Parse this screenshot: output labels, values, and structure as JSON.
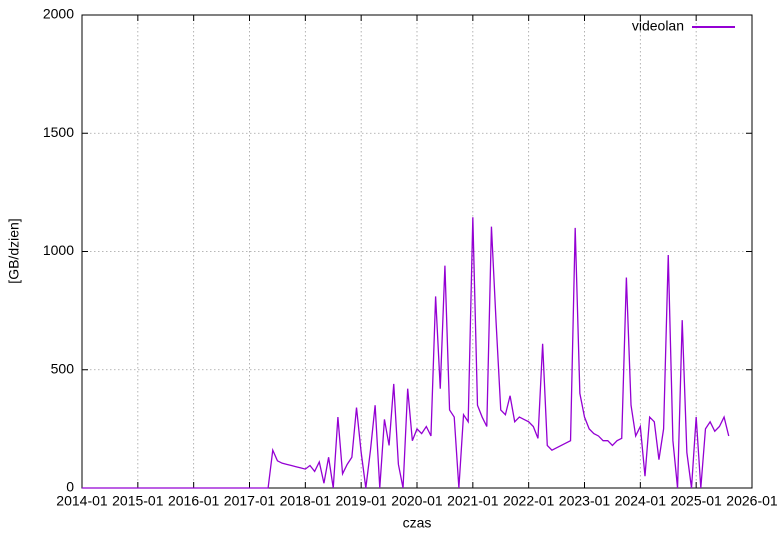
{
  "chart_data": {
    "type": "line",
    "ylabel": "[GB/dzien]",
    "xlabel": "czas",
    "x": [
      "2014-01",
      "2014-02",
      "2014-03",
      "2014-04",
      "2014-05",
      "2014-06",
      "2014-07",
      "2014-08",
      "2014-09",
      "2014-10",
      "2014-11",
      "2014-12",
      "2015-01",
      "2015-02",
      "2015-03",
      "2015-04",
      "2015-05",
      "2015-06",
      "2015-07",
      "2015-08",
      "2015-09",
      "2015-10",
      "2015-11",
      "2015-12",
      "2016-01",
      "2016-02",
      "2016-03",
      "2016-04",
      "2016-05",
      "2016-06",
      "2016-07",
      "2016-08",
      "2016-09",
      "2016-10",
      "2016-11",
      "2016-12",
      "2017-01",
      "2017-02",
      "2017-03",
      "2017-04",
      "2017-05",
      "2017-06",
      "2017-07",
      "2017-08",
      "2017-09",
      "2017-10",
      "2017-11",
      "2017-12",
      "2018-01",
      "2018-02",
      "2018-03",
      "2018-04",
      "2018-05",
      "2018-06",
      "2018-07",
      "2018-08",
      "2018-09",
      "2018-10",
      "2018-11",
      "2018-12",
      "2019-01",
      "2019-02",
      "2019-03",
      "2019-04",
      "2019-05",
      "2019-06",
      "2019-07",
      "2019-08",
      "2019-09",
      "2019-10",
      "2019-11",
      "2019-12",
      "2020-01",
      "2020-02",
      "2020-03",
      "2020-04",
      "2020-05",
      "2020-06",
      "2020-07",
      "2020-08",
      "2020-09",
      "2020-10",
      "2020-11",
      "2020-12",
      "2021-01",
      "2021-02",
      "2021-03",
      "2021-04",
      "2021-05",
      "2021-06",
      "2021-07",
      "2021-08",
      "2021-09",
      "2021-10",
      "2021-11",
      "2021-12",
      "2022-01",
      "2022-02",
      "2022-03",
      "2022-04",
      "2022-05",
      "2022-06",
      "2022-07",
      "2022-08",
      "2022-09",
      "2022-10",
      "2022-11",
      "2022-12",
      "2023-01",
      "2023-02",
      "2023-03",
      "2023-04",
      "2023-05",
      "2023-06",
      "2023-07",
      "2023-08",
      "2023-09",
      "2023-10",
      "2023-11",
      "2023-12",
      "2024-01",
      "2024-02",
      "2024-03",
      "2024-04",
      "2024-05",
      "2024-06",
      "2024-07",
      "2024-08",
      "2024-09",
      "2024-10",
      "2024-11",
      "2024-12",
      "2025-01",
      "2025-02",
      "2025-03",
      "2025-04",
      "2025-05",
      "2025-06",
      "2025-07",
      "2025-08"
    ],
    "series": [
      {
        "name": "videolan",
        "color": "#9400d3",
        "values": [
          0,
          0,
          0,
          0,
          0,
          0,
          0,
          0,
          0,
          0,
          0,
          0,
          0,
          0,
          0,
          0,
          0,
          0,
          0,
          0,
          0,
          0,
          0,
          0,
          0,
          0,
          0,
          0,
          0,
          0,
          0,
          0,
          0,
          0,
          0,
          0,
          0,
          0,
          0,
          0,
          0,
          160,
          115,
          105,
          100,
          95,
          90,
          85,
          80,
          95,
          70,
          110,
          20,
          130,
          0,
          300,
          60,
          100,
          130,
          340,
          150,
          0,
          160,
          350,
          0,
          290,
          180,
          440,
          100,
          0,
          420,
          200,
          250,
          230,
          260,
          220,
          810,
          420,
          940,
          330,
          300,
          0,
          310,
          280,
          1145,
          350,
          300,
          260,
          1105,
          700,
          330,
          310,
          390,
          280,
          300,
          290,
          280,
          260,
          210,
          610,
          180,
          160,
          170,
          180,
          190,
          200,
          1100,
          400,
          300,
          250,
          230,
          220,
          200,
          200,
          180,
          200,
          210,
          890,
          350,
          220,
          260,
          50,
          300,
          280,
          120,
          250,
          985,
          200,
          0,
          710,
          150,
          0,
          300,
          0,
          250,
          280,
          240,
          260,
          300,
          220
        ]
      }
    ],
    "xlim": [
      "2014-01",
      "2026-01"
    ],
    "xticks": [
      "2014-01",
      "2015-01",
      "2016-01",
      "2017-01",
      "2018-01",
      "2019-01",
      "2020-01",
      "2021-01",
      "2022-01",
      "2023-01",
      "2024-01",
      "2025-01",
      "2026-01"
    ],
    "ylim": [
      0,
      2000
    ],
    "yticks": [
      0,
      500,
      1000,
      1500,
      2000
    ],
    "grid": true,
    "legend": "top-right"
  }
}
